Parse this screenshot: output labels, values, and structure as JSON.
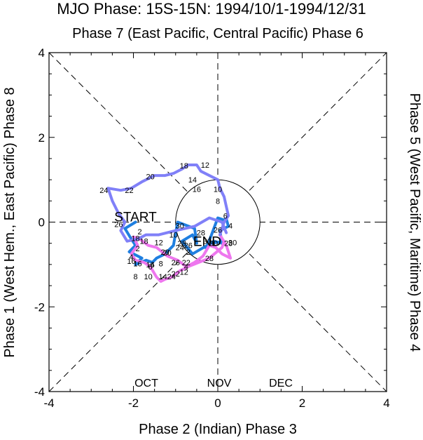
{
  "chart_data": {
    "type": "line",
    "title": "MJO Phase: 15S-15N: 1994/10/1-1994/12/31",
    "top_label": "Phase 7 (East Pacific, Central Pacific) Phase 6",
    "xlabel": "Phase 2 (Indian) Phase 3",
    "ylabel": "Phase 1 (West Hem., East Pacific) Phase 8",
    "right_label": "Phase 5 (West Pacific, Maritime) Phase 4",
    "xlim": [
      -4,
      4
    ],
    "ylim": [
      -4,
      4
    ],
    "xticks": [
      "-4",
      "-2",
      "0",
      "2",
      "4"
    ],
    "yticks": [
      "-4",
      "-2",
      "0",
      "2",
      "4"
    ],
    "start_label": "START",
    "end_label": "END",
    "legend": [
      {
        "label": "OCT",
        "color": "#1f7fe0"
      },
      {
        "label": "NOV",
        "color": "#ee77ee"
      },
      {
        "label": "DEC",
        "color": "#8080f8"
      }
    ],
    "series": [
      {
        "name": "OCT",
        "color": "#1f7fe0",
        "points": [
          [
            -1.95,
            0.0
          ],
          [
            -2.2,
            -0.15
          ],
          [
            -2.05,
            -0.4
          ],
          [
            -1.95,
            -0.55
          ],
          [
            -2.1,
            -0.7
          ],
          [
            -1.8,
            -0.85
          ],
          [
            -1.95,
            -1.0
          ],
          [
            -1.7,
            -0.9
          ],
          [
            -1.55,
            -0.95
          ],
          [
            -1.45,
            -0.85
          ],
          [
            -1.25,
            -0.75
          ],
          [
            -1.05,
            -0.55
          ],
          [
            -1.0,
            -0.25
          ],
          [
            -0.95,
            0.0
          ],
          [
            -0.55,
            -0.15
          ],
          [
            -0.5,
            -0.5
          ],
          [
            -0.6,
            -0.3
          ],
          [
            -0.85,
            -0.45
          ],
          [
            -0.6,
            -0.75
          ],
          [
            -0.25,
            -0.55
          ],
          [
            -0.15,
            -0.3
          ],
          [
            0.0,
            0.1
          ],
          [
            0.15,
            0.05
          ],
          [
            0.2,
            0.08
          ],
          [
            0.25,
            -0.1
          ],
          [
            0.05,
            -0.2
          ],
          [
            0.1,
            -0.5
          ],
          [
            -0.1,
            -0.45
          ],
          [
            -0.3,
            -0.6
          ],
          [
            -0.15,
            -0.5
          ],
          [
            0.15,
            -0.45
          ]
        ]
      },
      {
        "name": "NOV",
        "color": "#ee77ee",
        "points": [
          [
            0.15,
            -0.45
          ],
          [
            0.1,
            -0.6
          ],
          [
            -0.2,
            -0.85
          ],
          [
            -0.45,
            -0.95
          ],
          [
            -0.7,
            -1.05
          ],
          [
            -0.9,
            -1.15
          ],
          [
            -1.1,
            -1.3
          ],
          [
            -1.25,
            -1.35
          ],
          [
            -1.35,
            -1.4
          ],
          [
            -1.45,
            -1.3
          ],
          [
            -1.6,
            -1.05
          ],
          [
            -1.75,
            -0.95
          ],
          [
            -1.95,
            -0.9
          ],
          [
            -2.05,
            -0.75
          ],
          [
            -1.9,
            -0.55
          ],
          [
            -2.0,
            -0.35
          ],
          [
            -1.85,
            -0.4
          ],
          [
            -1.65,
            -0.55
          ],
          [
            -1.45,
            -0.6
          ],
          [
            -1.2,
            -0.8
          ],
          [
            -0.95,
            -0.9
          ],
          [
            -0.75,
            -1.05
          ],
          [
            -0.55,
            -0.95
          ],
          [
            -0.35,
            -0.8
          ],
          [
            -0.2,
            -0.55
          ],
          [
            -0.05,
            -0.6
          ],
          [
            0.1,
            -0.75
          ],
          [
            0.3,
            -0.85
          ],
          [
            0.2,
            -0.55
          ],
          [
            0.05,
            -0.3
          ]
        ]
      },
      {
        "name": "DEC",
        "color": "#8080f8",
        "points": [
          [
            0.05,
            -0.3
          ],
          [
            0.15,
            0.0
          ],
          [
            0.25,
            0.15
          ],
          [
            0.15,
            0.6
          ],
          [
            0.05,
            0.8
          ],
          [
            0.0,
            1.0
          ],
          [
            -0.2,
            1.1
          ],
          [
            -0.4,
            1.2
          ],
          [
            -0.5,
            1.35
          ],
          [
            -0.7,
            1.35
          ],
          [
            -0.85,
            1.25
          ],
          [
            -1.05,
            1.15
          ],
          [
            -1.25,
            1.1
          ],
          [
            -1.5,
            1.1
          ],
          [
            -1.8,
            0.95
          ],
          [
            -2.05,
            0.8
          ],
          [
            -2.3,
            0.75
          ],
          [
            -2.6,
            0.8
          ],
          [
            -2.5,
            0.5
          ],
          [
            -2.35,
            0.2
          ],
          [
            -2.2,
            0.0
          ],
          [
            -2.3,
            -0.2
          ],
          [
            -2.15,
            -0.45
          ],
          [
            -1.9,
            -0.4
          ],
          [
            -1.7,
            -0.3
          ],
          [
            -1.4,
            -0.3
          ],
          [
            -1.0,
            -0.2
          ],
          [
            -0.55,
            -0.1
          ],
          [
            -0.2,
            0.1
          ],
          [
            0.1,
            0.0
          ],
          [
            0.2,
            -0.25
          ]
        ]
      }
    ],
    "point_labels": [
      {
        "text": "2",
        "x": -1.9,
        "y": -0.62,
        "color": "#000000"
      },
      {
        "text": "4",
        "x": -2.05,
        "y": -0.82,
        "color": "#000000"
      },
      {
        "text": "6",
        "x": -1.55,
        "y": -1.0,
        "color": "#000000"
      },
      {
        "text": "8",
        "x": -1.35,
        "y": -0.98,
        "color": "#000000"
      },
      {
        "text": "10",
        "x": -1.05,
        "y": -0.3,
        "color": "#000000"
      },
      {
        "text": "12",
        "x": -1.4,
        "y": -0.48,
        "color": "#000000"
      },
      {
        "text": "14",
        "x": -1.6,
        "y": -1.0,
        "color": "#000000"
      },
      {
        "text": "16",
        "x": -1.9,
        "y": -0.98,
        "color": "#000000"
      },
      {
        "text": "18",
        "x": -1.75,
        "y": -0.45,
        "color": "#000000"
      },
      {
        "text": "20",
        "x": -1.25,
        "y": -0.7,
        "color": "#000000"
      },
      {
        "text": "22",
        "x": -0.75,
        "y": -0.95,
        "color": "#000000"
      },
      {
        "text": "24",
        "x": -0.9,
        "y": -0.6,
        "color": "#000000"
      },
      {
        "text": "26",
        "x": -0.7,
        "y": -0.55,
        "color": "#000000"
      },
      {
        "text": "28",
        "x": -0.85,
        "y": -0.5,
        "color": "#000000"
      },
      {
        "text": "30",
        "x": -0.9,
        "y": -0.08,
        "color": "#000000"
      },
      {
        "text": "2",
        "x": -0.7,
        "y": -0.7,
        "color": "#000000"
      },
      {
        "text": "4",
        "x": -0.75,
        "y": -1.05,
        "color": "#000000"
      },
      {
        "text": "6",
        "x": -1.6,
        "y": -1.05,
        "color": "#000000"
      },
      {
        "text": "8",
        "x": -1.95,
        "y": -1.28,
        "color": "#000000"
      },
      {
        "text": "10",
        "x": -1.65,
        "y": -1.28,
        "color": "#000000"
      },
      {
        "text": "12",
        "x": -0.8,
        "y": -1.18,
        "color": "#000000"
      },
      {
        "text": "14",
        "x": -1.3,
        "y": -1.28,
        "color": "#000000"
      },
      {
        "text": "16",
        "x": -2.05,
        "y": -0.92,
        "color": "#000000"
      },
      {
        "text": "18",
        "x": -1.95,
        "y": -0.38,
        "color": "#000000"
      },
      {
        "text": "20",
        "x": -1.2,
        "y": -0.72,
        "color": "#000000"
      },
      {
        "text": "22",
        "x": -1.0,
        "y": -1.22,
        "color": "#000000"
      },
      {
        "text": "24",
        "x": -1.1,
        "y": -1.28,
        "color": "#000000"
      },
      {
        "text": "26",
        "x": -1.0,
        "y": -0.95,
        "color": "#000000"
      },
      {
        "text": "28",
        "x": -0.2,
        "y": -0.85,
        "color": "#000000"
      },
      {
        "text": "30",
        "x": -0.1,
        "y": -0.5,
        "color": "#000000"
      },
      {
        "text": "2",
        "x": -1.85,
        "y": -0.22,
        "color": "#000000"
      },
      {
        "text": "4",
        "x": 0.3,
        "y": -0.08,
        "color": "#000000"
      },
      {
        "text": "6",
        "x": 0.18,
        "y": 0.15,
        "color": "#000000"
      },
      {
        "text": "8",
        "x": 0.0,
        "y": 0.5,
        "color": "#000000"
      },
      {
        "text": "10",
        "x": 0.0,
        "y": 0.78,
        "color": "#000000"
      },
      {
        "text": "12",
        "x": -0.3,
        "y": 1.35,
        "color": "#000000"
      },
      {
        "text": "14",
        "x": -0.6,
        "y": 1.0,
        "color": "#000000"
      },
      {
        "text": "16",
        "x": -0.5,
        "y": 0.78,
        "color": "#000000"
      },
      {
        "text": "18",
        "x": -0.8,
        "y": 1.33,
        "color": "#000000"
      },
      {
        "text": "20",
        "x": -1.6,
        "y": 1.08,
        "color": "#000000"
      },
      {
        "text": "22",
        "x": -2.1,
        "y": 0.75,
        "color": "#000000"
      },
      {
        "text": "24",
        "x": -2.7,
        "y": 0.75,
        "color": "#000000"
      },
      {
        "text": "26",
        "x": -2.35,
        "y": -0.05,
        "color": "#000000"
      },
      {
        "text": "28",
        "x": -0.4,
        "y": -0.25,
        "color": "#000000"
      },
      {
        "text": "30",
        "x": -0.25,
        "y": -0.45,
        "color": "#000000"
      },
      {
        "text": "26",
        "x": 0.0,
        "y": -0.18,
        "color": "#000000"
      },
      {
        "text": "28",
        "x": 0.25,
        "y": -0.5,
        "color": "#000000"
      },
      {
        "text": "30",
        "x": 0.35,
        "y": -0.48,
        "color": "#000000"
      }
    ]
  }
}
